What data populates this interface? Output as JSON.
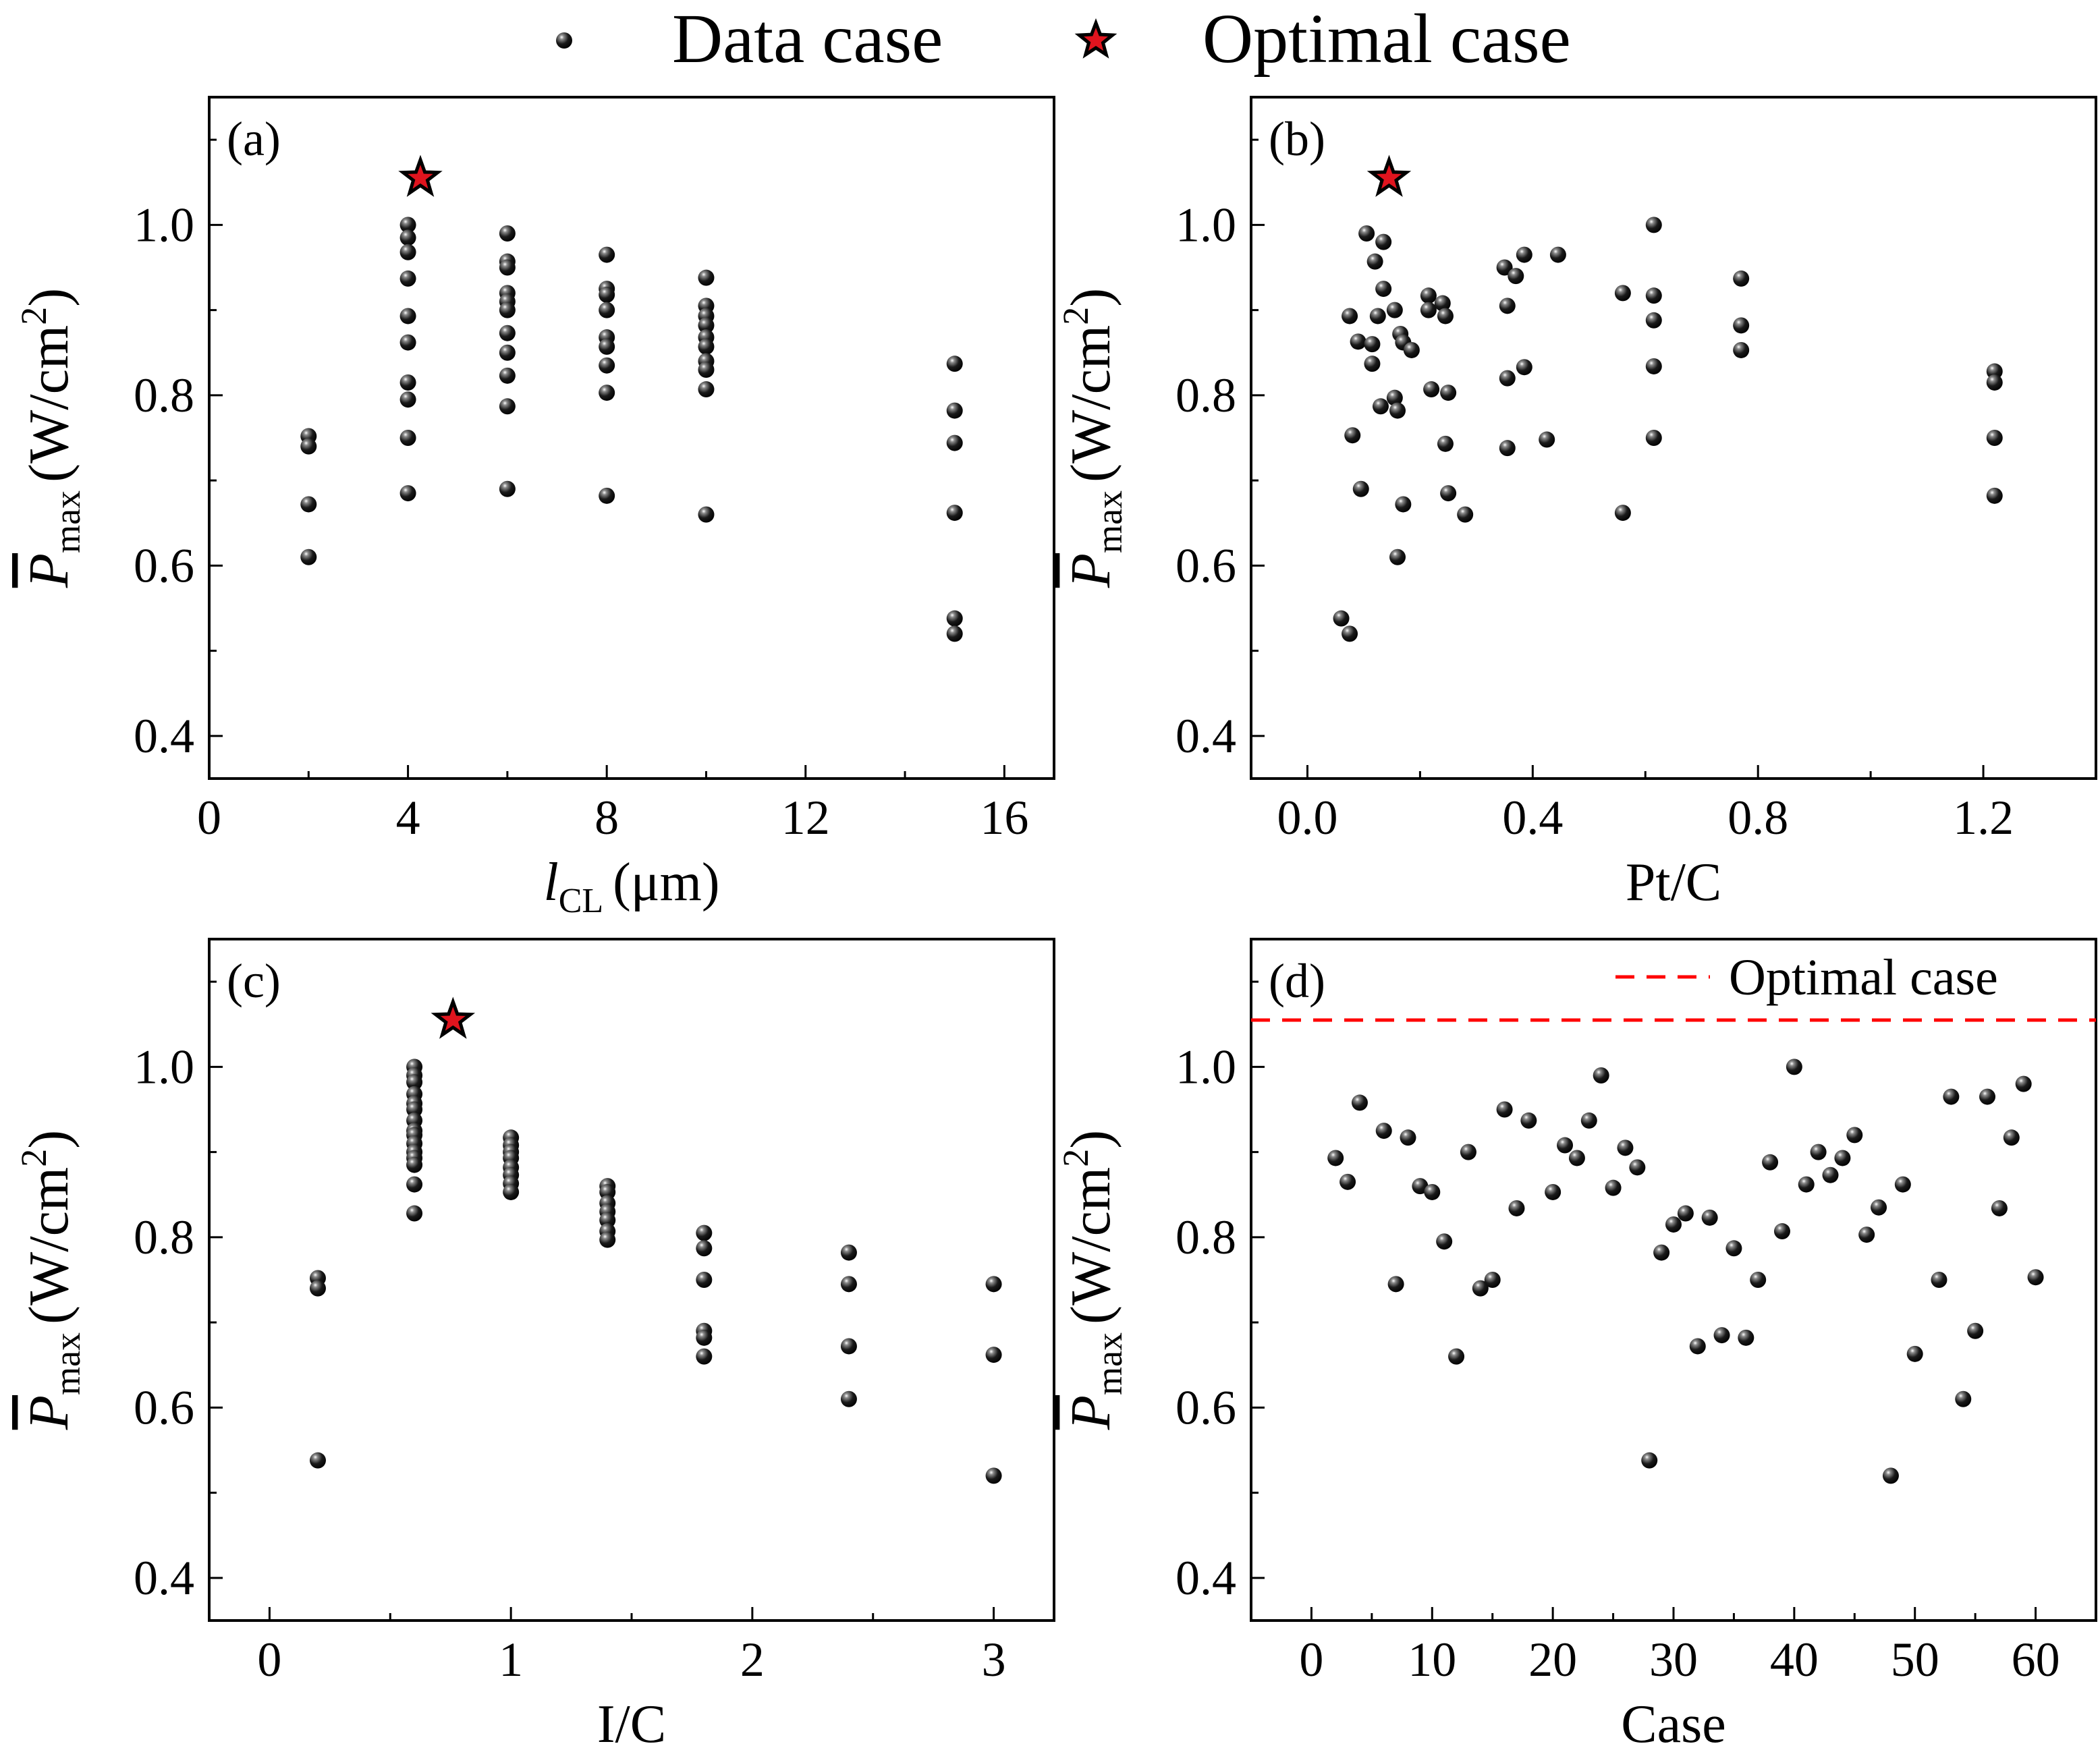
{
  "legend": {
    "data_label": "Data case",
    "optimal_label": "Optimal case"
  },
  "colors": {
    "marker": "#000000",
    "star": "#e0141e",
    "dashed_line": "#ff0000",
    "axis": "#000000"
  },
  "ylabel": {
    "symbol": "P",
    "subscript": "max",
    "units_pre": "(W/cm",
    "units_sup": "2",
    "units_post": ")"
  },
  "chart_data": [
    {
      "id": "a",
      "panel_label": "(a)",
      "type": "scatter",
      "xlabel": {
        "symbol": "l",
        "subscript": "CL",
        "units": "(μm)"
      },
      "xlim": [
        0,
        17
      ],
      "ylim": [
        0.35,
        1.15
      ],
      "xticks": [
        0,
        4,
        8,
        12,
        16
      ],
      "xtick_labels": [
        "0",
        "4",
        "8",
        "12",
        "16"
      ],
      "xminor": [
        2,
        6,
        10,
        14
      ],
      "yticks": [
        0.4,
        0.6,
        0.8,
        1.0
      ],
      "ytick_labels": [
        "0.4",
        "0.6",
        "0.8",
        "1.0"
      ],
      "yminor": [
        0.5,
        0.7,
        0.9,
        1.1
      ],
      "points": [
        [
          2,
          0.752
        ],
        [
          2,
          0.74
        ],
        [
          2,
          0.672
        ],
        [
          2,
          0.61
        ],
        [
          4,
          1.0
        ],
        [
          4,
          0.985
        ],
        [
          4,
          0.968
        ],
        [
          4,
          0.937
        ],
        [
          4,
          0.893
        ],
        [
          4,
          0.862
        ],
        [
          4,
          0.815
        ],
        [
          4,
          0.795
        ],
        [
          4,
          0.75
        ],
        [
          4,
          0.685
        ],
        [
          6,
          0.99
        ],
        [
          6,
          0.957
        ],
        [
          6,
          0.95
        ],
        [
          6,
          0.92
        ],
        [
          6,
          0.91
        ],
        [
          6,
          0.9
        ],
        [
          6,
          0.873
        ],
        [
          6,
          0.85
        ],
        [
          6,
          0.823
        ],
        [
          6,
          0.787
        ],
        [
          6,
          0.69
        ],
        [
          8,
          0.965
        ],
        [
          8,
          0.925
        ],
        [
          8,
          0.918
        ],
        [
          8,
          0.9
        ],
        [
          8,
          0.868
        ],
        [
          8,
          0.857
        ],
        [
          8,
          0.835
        ],
        [
          8,
          0.803
        ],
        [
          8,
          0.682
        ],
        [
          10,
          0.938
        ],
        [
          10,
          0.905
        ],
        [
          10,
          0.893
        ],
        [
          10,
          0.882
        ],
        [
          10,
          0.868
        ],
        [
          10,
          0.857
        ],
        [
          10,
          0.84
        ],
        [
          10,
          0.83
        ],
        [
          10,
          0.807
        ],
        [
          10,
          0.66
        ],
        [
          15,
          0.837
        ],
        [
          15,
          0.782
        ],
        [
          15,
          0.744
        ],
        [
          15,
          0.662
        ],
        [
          15,
          0.538
        ],
        [
          15,
          0.52
        ]
      ],
      "optimal": [
        4.25,
        1.055
      ]
    },
    {
      "id": "b",
      "panel_label": "(b)",
      "type": "scatter",
      "xlabel": {
        "symbol": "",
        "subscript": "",
        "units": "Pt/C"
      },
      "xlim": [
        -0.1,
        1.4
      ],
      "ylim": [
        0.35,
        1.15
      ],
      "xticks": [
        0.0,
        0.4,
        0.8,
        1.2
      ],
      "xtick_labels": [
        "0.0",
        "0.4",
        "0.8",
        "1.2"
      ],
      "xminor": [
        0.2,
        0.6,
        1.0
      ],
      "yticks": [
        0.4,
        0.6,
        0.8,
        1.0
      ],
      "ytick_labels": [
        "0.4",
        "0.6",
        "0.8",
        "1.0"
      ],
      "yminor": [
        0.5,
        0.7,
        0.9,
        1.1
      ],
      "points": [
        [
          0.06,
          0.538
        ],
        [
          0.075,
          0.52
        ],
        [
          0.075,
          0.893
        ],
        [
          0.08,
          0.753
        ],
        [
          0.09,
          0.863
        ],
        [
          0.095,
          0.69
        ],
        [
          0.105,
          0.99
        ],
        [
          0.115,
          0.86
        ],
        [
          0.115,
          0.837
        ],
        [
          0.12,
          0.957
        ],
        [
          0.125,
          0.893
        ],
        [
          0.13,
          0.787
        ],
        [
          0.135,
          0.98
        ],
        [
          0.135,
          0.925
        ],
        [
          0.155,
          0.9
        ],
        [
          0.155,
          0.797
        ],
        [
          0.16,
          0.61
        ],
        [
          0.16,
          0.782
        ],
        [
          0.165,
          0.872
        ],
        [
          0.17,
          0.862
        ],
        [
          0.17,
          0.672
        ],
        [
          0.185,
          0.853
        ],
        [
          0.215,
          0.917
        ],
        [
          0.215,
          0.9
        ],
        [
          0.22,
          0.807
        ],
        [
          0.24,
          0.908
        ],
        [
          0.245,
          0.893
        ],
        [
          0.25,
          0.803
        ],
        [
          0.245,
          0.743
        ],
        [
          0.25,
          0.685
        ],
        [
          0.28,
          0.66
        ],
        [
          0.35,
          0.95
        ],
        [
          0.355,
          0.905
        ],
        [
          0.355,
          0.82
        ],
        [
          0.355,
          0.738
        ],
        [
          0.37,
          0.94
        ],
        [
          0.385,
          0.965
        ],
        [
          0.385,
          0.833
        ],
        [
          0.425,
          0.748
        ],
        [
          0.445,
          0.965
        ],
        [
          0.56,
          0.92
        ],
        [
          0.56,
          0.662
        ],
        [
          0.615,
          1.0
        ],
        [
          0.615,
          0.917
        ],
        [
          0.615,
          0.888
        ],
        [
          0.615,
          0.834
        ],
        [
          0.615,
          0.75
        ],
        [
          0.77,
          0.937
        ],
        [
          0.77,
          0.882
        ],
        [
          0.77,
          0.853
        ],
        [
          1.22,
          0.828
        ],
        [
          1.22,
          0.815
        ],
        [
          1.22,
          0.75
        ],
        [
          1.22,
          0.682
        ]
      ],
      "optimal": [
        0.145,
        1.055
      ]
    },
    {
      "id": "c",
      "panel_label": "(c)",
      "type": "scatter",
      "xlabel": {
        "symbol": "",
        "subscript": "",
        "units": "I/C"
      },
      "xlim": [
        -0.25,
        3.25
      ],
      "ylim": [
        0.35,
        1.15
      ],
      "xticks": [
        0,
        1,
        2,
        3
      ],
      "xtick_labels": [
        "0",
        "1",
        "2",
        "3"
      ],
      "xminor": [
        0.5,
        1.5,
        2.5
      ],
      "yticks": [
        0.4,
        0.6,
        0.8,
        1.0
      ],
      "ytick_labels": [
        "0.4",
        "0.6",
        "0.8",
        "1.0"
      ],
      "yminor": [
        0.5,
        0.7,
        0.9,
        1.1
      ],
      "points": [
        [
          0.2,
          0.752
        ],
        [
          0.2,
          0.74
        ],
        [
          0.2,
          0.538
        ],
        [
          0.6,
          1.0
        ],
        [
          0.6,
          0.99
        ],
        [
          0.6,
          0.982
        ],
        [
          0.6,
          0.968
        ],
        [
          0.6,
          0.957
        ],
        [
          0.6,
          0.95
        ],
        [
          0.6,
          0.937
        ],
        [
          0.6,
          0.925
        ],
        [
          0.6,
          0.92
        ],
        [
          0.6,
          0.91
        ],
        [
          0.6,
          0.9
        ],
        [
          0.6,
          0.893
        ],
        [
          0.6,
          0.885
        ],
        [
          0.6,
          0.862
        ],
        [
          0.6,
          0.828
        ],
        [
          1.0,
          0.917
        ],
        [
          1.0,
          0.908
        ],
        [
          1.0,
          0.9
        ],
        [
          1.0,
          0.893
        ],
        [
          1.0,
          0.882
        ],
        [
          1.0,
          0.873
        ],
        [
          1.0,
          0.863
        ],
        [
          1.0,
          0.853
        ],
        [
          1.4,
          0.86
        ],
        [
          1.4,
          0.853
        ],
        [
          1.4,
          0.84
        ],
        [
          1.4,
          0.83
        ],
        [
          1.4,
          0.82
        ],
        [
          1.4,
          0.807
        ],
        [
          1.4,
          0.797
        ],
        [
          1.8,
          0.805
        ],
        [
          1.8,
          0.787
        ],
        [
          1.8,
          0.75
        ],
        [
          1.8,
          0.69
        ],
        [
          1.8,
          0.682
        ],
        [
          1.8,
          0.66
        ],
        [
          2.4,
          0.782
        ],
        [
          2.4,
          0.745
        ],
        [
          2.4,
          0.672
        ],
        [
          2.4,
          0.61
        ],
        [
          3.0,
          0.745
        ],
        [
          3.0,
          0.662
        ],
        [
          3.0,
          0.52
        ]
      ],
      "optimal": [
        0.76,
        1.055
      ]
    },
    {
      "id": "d",
      "panel_label": "(d)",
      "type": "scatter",
      "xlabel": {
        "symbol": "",
        "subscript": "",
        "units": "Case"
      },
      "xlim": [
        -5,
        65
      ],
      "ylim": [
        0.35,
        1.15
      ],
      "xticks": [
        0,
        10,
        20,
        30,
        40,
        50,
        60
      ],
      "xtick_labels": [
        "0",
        "10",
        "20",
        "30",
        "40",
        "50",
        "60"
      ],
      "xminor": [
        5,
        15,
        25,
        35,
        45,
        55
      ],
      "yticks": [
        0.4,
        0.6,
        0.8,
        1.0
      ],
      "ytick_labels": [
        "0.4",
        "0.6",
        "0.8",
        "1.0"
      ],
      "yminor": [
        0.5,
        0.7,
        0.9,
        1.1
      ],
      "points": [
        [
          2,
          0.893
        ],
        [
          3,
          0.865
        ],
        [
          4,
          0.958
        ],
        [
          6,
          0.925
        ],
        [
          7,
          0.745
        ],
        [
          8,
          0.917
        ],
        [
          9,
          0.86
        ],
        [
          10,
          0.853
        ],
        [
          11,
          0.795
        ],
        [
          12,
          0.66
        ],
        [
          13,
          0.9
        ],
        [
          14,
          0.74
        ],
        [
          15,
          0.75
        ],
        [
          16,
          0.95
        ],
        [
          17,
          0.834
        ],
        [
          18,
          0.937
        ],
        [
          20,
          0.853
        ],
        [
          21,
          0.908
        ],
        [
          22,
          0.893
        ],
        [
          23,
          0.937
        ],
        [
          24,
          0.99
        ],
        [
          25,
          0.858
        ],
        [
          26,
          0.905
        ],
        [
          27,
          0.882
        ],
        [
          28,
          0.538
        ],
        [
          29,
          0.782
        ],
        [
          30,
          0.815
        ],
        [
          31,
          0.828
        ],
        [
          32,
          0.672
        ],
        [
          33,
          0.823
        ],
        [
          34,
          0.685
        ],
        [
          35,
          0.787
        ],
        [
          36,
          0.682
        ],
        [
          37,
          0.75
        ],
        [
          38,
          0.888
        ],
        [
          39,
          0.807
        ],
        [
          40,
          1.0
        ],
        [
          41,
          0.862
        ],
        [
          42,
          0.9
        ],
        [
          43,
          0.873
        ],
        [
          44,
          0.893
        ],
        [
          45,
          0.92
        ],
        [
          46,
          0.803
        ],
        [
          47,
          0.835
        ],
        [
          48,
          0.52
        ],
        [
          49,
          0.862
        ],
        [
          50,
          0.663
        ],
        [
          52,
          0.75
        ],
        [
          53,
          0.965
        ],
        [
          54,
          0.61
        ],
        [
          55,
          0.69
        ],
        [
          56,
          0.965
        ],
        [
          57,
          0.834
        ],
        [
          58,
          0.917
        ],
        [
          59,
          0.98
        ],
        [
          60,
          0.753
        ]
      ],
      "hline": 1.055,
      "hline_label": "Optimal case"
    }
  ]
}
